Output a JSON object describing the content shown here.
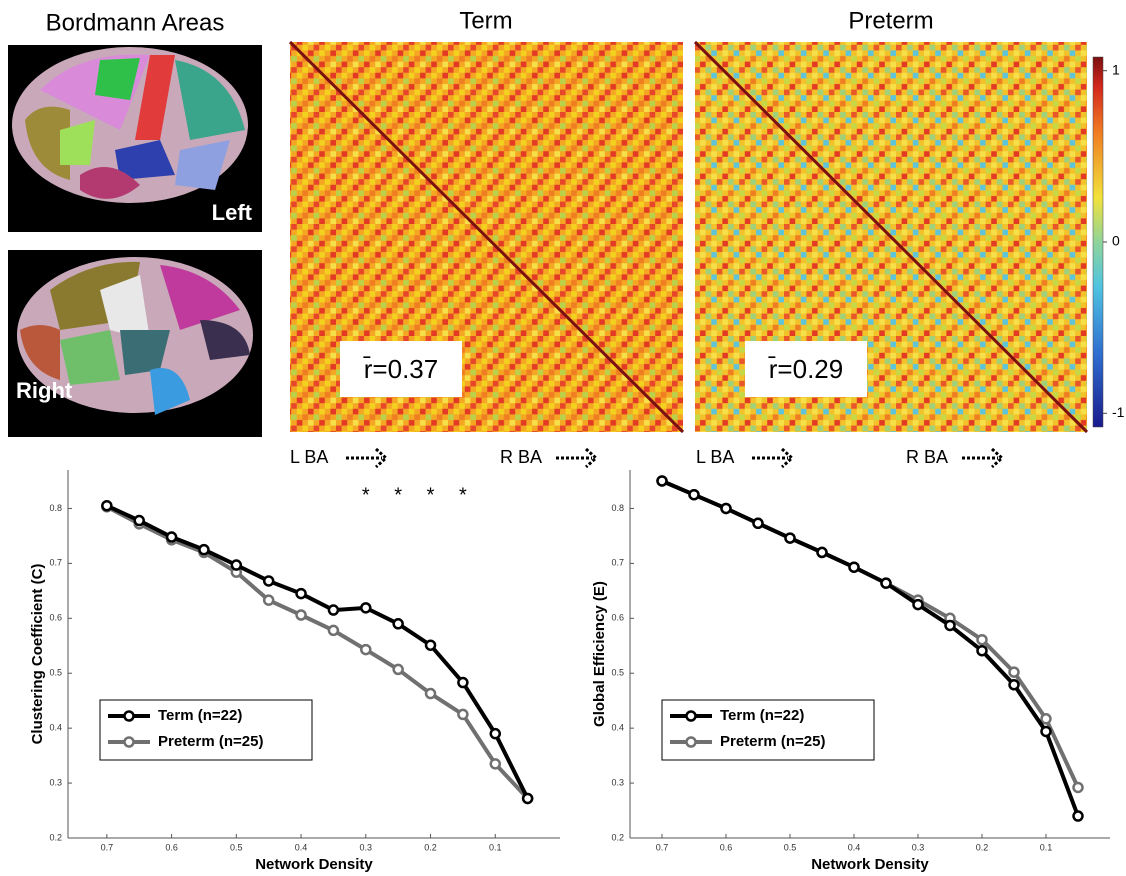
{
  "title": "Bordmann Areas",
  "brain_labels": [
    "Left",
    "Right"
  ],
  "matrices": [
    {
      "title": "Term",
      "mean_r_label": "r̄=0.37"
    },
    {
      "title": "Preterm",
      "mean_r_label": "r̄=0.29"
    }
  ],
  "matrix_axis_labels": [
    "L BA",
    "R BA"
  ],
  "colorbar": {
    "lim": [
      -1.08,
      1.08
    ],
    "ticks": [
      1,
      0,
      -1
    ]
  },
  "chart_data": [
    {
      "type": "line",
      "xlabel": "Network Density",
      "ylabel": "Clustering Coefficient (C)",
      "x": [
        0.7,
        0.65,
        0.6,
        0.55,
        0.5,
        0.45,
        0.4,
        0.35,
        0.3,
        0.25,
        0.2,
        0.15,
        0.1,
        0.05
      ],
      "series": [
        {
          "name": "Term (n=22)",
          "color": "#000000",
          "values": [
            0.805,
            0.778,
            0.748,
            0.725,
            0.697,
            0.668,
            0.645,
            0.615,
            0.619,
            0.59,
            0.551,
            0.483,
            0.39,
            0.272
          ]
        },
        {
          "name": "Preterm (n=25)",
          "color": "#707070",
          "values": [
            0.803,
            0.772,
            0.743,
            0.72,
            0.684,
            0.633,
            0.606,
            0.578,
            0.543,
            0.507,
            0.463,
            0.425,
            0.335,
            0.272
          ]
        }
      ],
      "xlim": [
        0.76,
        0.0
      ],
      "ylim": [
        0.2,
        0.87
      ],
      "xticks": [
        0.7,
        0.6,
        0.5,
        0.4,
        0.3,
        0.2,
        0.1
      ],
      "yticks": [
        0.2,
        0.3,
        0.4,
        0.5,
        0.6,
        0.7,
        0.8
      ],
      "legend": "lower-left",
      "significance_marker": "*",
      "significance_x": [
        0.3,
        0.25,
        0.2,
        0.15
      ]
    },
    {
      "type": "line",
      "xlabel": "Network Density",
      "ylabel": "Global Efficiency (E)",
      "x": [
        0.7,
        0.65,
        0.6,
        0.55,
        0.5,
        0.45,
        0.4,
        0.35,
        0.3,
        0.25,
        0.2,
        0.15,
        0.1,
        0.05
      ],
      "series": [
        {
          "name": "Term (n=22)",
          "color": "#000000",
          "values": [
            0.85,
            0.825,
            0.8,
            0.773,
            0.746,
            0.72,
            0.693,
            0.664,
            0.625,
            0.587,
            0.541,
            0.479,
            0.394,
            0.24
          ]
        },
        {
          "name": "Preterm (n=25)",
          "color": "#707070",
          "values": [
            0.85,
            0.825,
            0.8,
            0.773,
            0.746,
            0.72,
            0.693,
            0.664,
            0.633,
            0.6,
            0.561,
            0.502,
            0.417,
            0.292
          ]
        }
      ],
      "xlim": [
        0.75,
        0.0
      ],
      "ylim": [
        0.2,
        0.87
      ],
      "xticks": [
        0.7,
        0.6,
        0.5,
        0.4,
        0.3,
        0.2,
        0.1
      ],
      "yticks": [
        0.2,
        0.3,
        0.4,
        0.5,
        0.6,
        0.7,
        0.8
      ],
      "legend": "lower-left"
    }
  ]
}
